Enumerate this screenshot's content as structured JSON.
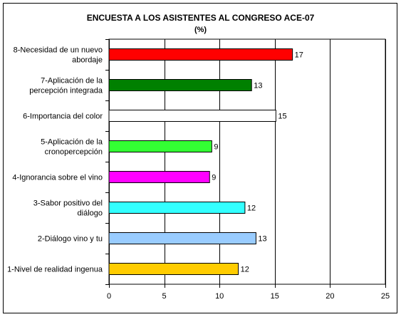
{
  "chart_data": {
    "type": "bar",
    "orientation": "horizontal",
    "title": "ENCUESTA A LOS ASISTENTES AL CONGRESO ACE-07",
    "subtitle": "(%)",
    "xlabel": "",
    "ylabel": "",
    "xlim": [
      0,
      25
    ],
    "xticks": [
      0,
      5,
      10,
      15,
      20,
      25
    ],
    "grid": "vertical",
    "legend": "none",
    "categories": [
      [
        "8-Necesidad de un nuevo",
        "abordaje"
      ],
      [
        "7-Aplicación de la",
        "percepción integrada"
      ],
      [
        "6-Importancia del color"
      ],
      [
        "5-Aplicación de la",
        "cronopercepción"
      ],
      [
        "4-Ignorancia sobre el vino"
      ],
      [
        "3-Sabor positivo del",
        "diálogo"
      ],
      [
        "2-Diálogo vino y tu"
      ],
      [
        "1-Nivel de realidad ingenua"
      ]
    ],
    "values": [
      16.6,
      12.9,
      15.1,
      9.3,
      9.1,
      12.3,
      13.3,
      11.7
    ],
    "data_labels": [
      "17",
      "13",
      "15",
      "9",
      "9",
      "12",
      "13",
      "12"
    ],
    "colors": [
      "#ff0000",
      "#008000",
      "#ffffff",
      "#33ff33",
      "#ff00ff",
      "#33ffff",
      "#99ccff",
      "#ffcc00"
    ]
  }
}
